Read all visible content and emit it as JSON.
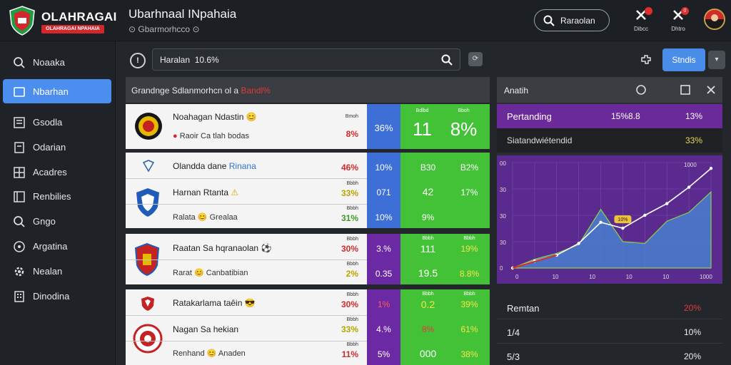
{
  "app": {
    "logo_title": "OLAHRAGAI",
    "logo_subtitle": "OLAHRAGAI NPAHAIA",
    "header_title": "Ubarhnaal INpahaia",
    "header_subtitle": "Gbarmorhcco",
    "search_button_label": "Raraolan",
    "icon_labels": [
      "Dibcc",
      "Dhtro"
    ],
    "notification_count": "0"
  },
  "sidebar": {
    "items": [
      {
        "label": "Noaaka",
        "icon": "search-icon"
      },
      {
        "label": "Nbarhan",
        "icon": "list-icon",
        "active": true
      },
      {
        "label": "Gsodla",
        "icon": "chart-icon"
      },
      {
        "label": "Odarian",
        "icon": "document-icon"
      },
      {
        "label": "Acadres",
        "icon": "grid-icon"
      },
      {
        "label": "Renbilies",
        "icon": "table-icon"
      },
      {
        "label": "Gngo",
        "icon": "search-icon"
      },
      {
        "label": "Argatina",
        "icon": "compass-icon"
      },
      {
        "label": "Nealan",
        "icon": "gear-icon"
      },
      {
        "label": "Dinodina",
        "icon": "building-icon"
      }
    ]
  },
  "toolbar": {
    "search_value": "Haralan  10.6%",
    "action_label": "Stndis"
  },
  "standings": {
    "title_prefix": "Grandnge Sdlanmorhcn ol a",
    "title_highlight": "Bandl%",
    "cards": [
      {
        "rows": [
          {
            "name": "Noahagan Ndastin",
            "emoji": "😊",
            "sub": "Raoir Ca tlah bodas",
            "pct_label": "Bmoh",
            "pct": "8%",
            "pct_color": "red"
          }
        ],
        "blue": "36%",
        "green_mid": "11",
        "green_mid_label": "Bdlbd",
        "green_right": "8%",
        "green_right_label": "Bboh"
      },
      {
        "rows": [
          {
            "name": "Olandda dane",
            "name_blue": "Rinana",
            "sub": "",
            "pct": "46%",
            "pct_color": "red",
            "blue": "10%",
            "green_mid": "B30",
            "green_right": "B2%"
          },
          {
            "name": "Harnan Rtanta",
            "emoji": "⚠",
            "pct_label": "Bbbh",
            "pct": "33%",
            "pct_color": "yel",
            "blue": "071",
            "green_mid": "42",
            "green_right": "17%"
          },
          {
            "name": "Ralata",
            "emoji": "😊",
            "name2": "Grealaa",
            "pct_label": "Bbbh",
            "pct": "31%",
            "pct_color": "grn",
            "blue": "10%",
            "green_mid": "9%",
            "green_right": ""
          }
        ]
      },
      {
        "rows": [
          {
            "name": "Raatan Sa hqranaolan",
            "emoji": "⚽",
            "pct_label": "Bbbh",
            "pct": "30%",
            "pct_color": "red",
            "blue": "3.%",
            "green_mid": "111",
            "green_mid_label": "Bbbh",
            "green_right": "19%",
            "green_right_label": "Bbbh"
          },
          {
            "name": "Rarat",
            "emoji": "😊",
            "name2": "Canbatibian",
            "pct_label": "Bbbh",
            "pct": "2%",
            "pct_color": "yel",
            "blue": "0.35",
            "green_mid": "19.5",
            "green_right": "8.8%"
          }
        ]
      },
      {
        "rows": [
          {
            "name": "Ratakarlama taêin",
            "emoji": "😎",
            "pct_label": "Bbbh",
            "pct": "30%",
            "pct_color": "red",
            "blue": "1%",
            "green_mid": "0.2",
            "green_mid_label": "Bbbh",
            "green_right": "39%",
            "green_right_label": "Bbbh"
          },
          {
            "name": "Nagan Sa hekian",
            "pct_label": "Bbbh",
            "pct": "33%",
            "pct_color": "yel",
            "blue": "4.%",
            "green_mid": "8%",
            "green_right": "61%"
          },
          {
            "name": "Renhand",
            "emoji": "😊",
            "name2": "Anaden",
            "pct_label": "Bbbh",
            "pct": "11%",
            "pct_color": "red",
            "blue": "5%",
            "green_mid": "000",
            "green_right": "38%"
          }
        ]
      }
    ]
  },
  "analytics": {
    "title": "Anatih",
    "row1": {
      "label": "Pertanding",
      "value": "15%8.8",
      "pct": "13%"
    },
    "row2": {
      "label": "Siatandwiétendid",
      "value": "",
      "pct": "33%"
    },
    "chart_data": {
      "type": "line",
      "y_ticks": [
        "00",
        "30",
        "30",
        "30",
        "0"
      ],
      "x_ticks": [
        "0",
        "10",
        "10",
        "10",
        "10",
        "1000"
      ],
      "top_right_tick": "1000",
      "tooltip": "10%",
      "series": [
        {
          "values": [
            0,
            12,
            22,
            42,
            78,
            68,
            90,
            110,
            138,
            170
          ]
        },
        {
          "values": [
            0,
            15,
            25,
            40,
            100,
            45,
            42,
            80,
            95,
            130
          ]
        }
      ]
    }
  },
  "bottom_table": {
    "rows": [
      {
        "label": "Remtan",
        "value": "20%",
        "color": "red"
      },
      {
        "label": "1/4",
        "value": "10%",
        "color": "white"
      },
      {
        "label": "5/3",
        "value": "20%",
        "color": "white"
      }
    ]
  },
  "colors": {
    "accent": "#4b8ef0",
    "green": "#43c237",
    "purple": "#6a2a9a",
    "blue": "#3d6fd6",
    "red": "#d62a2a"
  }
}
